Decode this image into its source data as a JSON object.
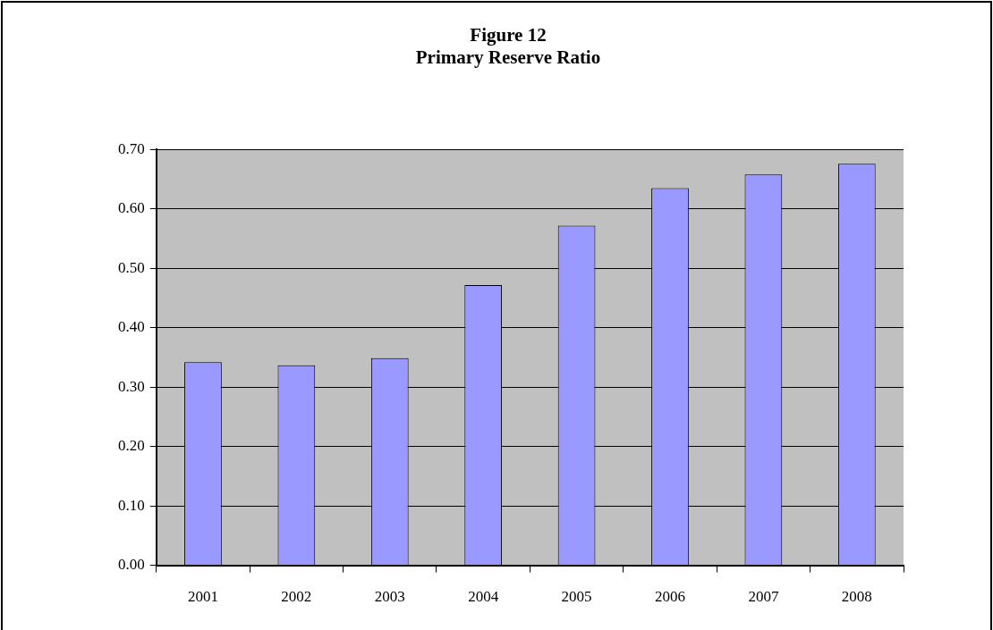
{
  "chart_data": {
    "type": "bar",
    "title": "Figure 12",
    "subtitle": "Primary Reserve Ratio",
    "categories": [
      "2001",
      "2002",
      "2003",
      "2004",
      "2005",
      "2006",
      "2007",
      "2008"
    ],
    "values": [
      0.342,
      0.337,
      0.349,
      0.472,
      0.572,
      0.635,
      0.658,
      0.676
    ],
    "color": "#9999ff",
    "ylim": [
      0,
      0.7
    ],
    "yticks": [
      {
        "value": 0,
        "label": "0.00"
      },
      {
        "value": 0.1,
        "label": "0.10"
      },
      {
        "value": 0.2,
        "label": "0.20"
      },
      {
        "value": 0.3,
        "label": "0.30"
      },
      {
        "value": 0.4,
        "label": "0.40"
      },
      {
        "value": 0.5,
        "label": "0.50"
      },
      {
        "value": 0.6,
        "label": "0.60"
      },
      {
        "value": 0.7,
        "label": "0.70"
      }
    ],
    "grid": "y"
  }
}
